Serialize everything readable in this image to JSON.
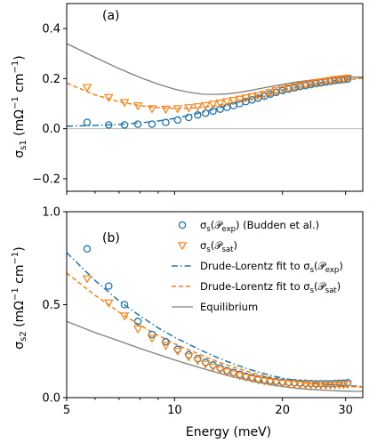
{
  "colors": {
    "exp": "#1f77b4",
    "sat": "#ff7f0e",
    "equilibrium": "#7f7f7f",
    "zero_line": "#b0b0b0"
  },
  "chart_data": [
    {
      "type": "scatter",
      "panel_label": "(a)",
      "ylabel": "σs1 (mΩ⁻¹ cm⁻¹)",
      "xlabel": "",
      "xscale": "log",
      "xlim": [
        5,
        33.5
      ],
      "ylim": [
        -0.25,
        0.5
      ],
      "yticks": [
        -0.2,
        0.0,
        0.2,
        0.4
      ],
      "ytick_labels": [
        "−0.2",
        "0.0",
        "0.2",
        "0.4"
      ],
      "zero_line": true,
      "series": [
        {
          "key": "exp_points",
          "kind": "markers-circle",
          "x": [
            5.7,
            6.55,
            7.25,
            7.9,
            8.65,
            9.45,
            10.2,
            10.95,
            11.6,
            12.2,
            12.8,
            13.4,
            14.0,
            14.6,
            15.2,
            15.8,
            16.45,
            17.1,
            17.8,
            18.5,
            19.2,
            20.0,
            20.8,
            21.6,
            22.4,
            23.2,
            24.0,
            24.8,
            25.6,
            26.4,
            27.2,
            28.0,
            28.8,
            29.6,
            30.4
          ],
          "y": [
            0.025,
            0.015,
            0.015,
            0.018,
            0.018,
            0.025,
            0.035,
            0.045,
            0.055,
            0.062,
            0.07,
            0.078,
            0.085,
            0.092,
            0.1,
            0.108,
            0.115,
            0.122,
            0.13,
            0.138,
            0.145,
            0.152,
            0.158,
            0.163,
            0.168,
            0.172,
            0.176,
            0.18,
            0.183,
            0.186,
            0.189,
            0.192,
            0.194,
            0.196,
            0.198
          ]
        },
        {
          "key": "sat_points",
          "kind": "markers-triangle",
          "x": [
            5.7,
            6.55,
            7.25,
            7.9,
            8.65,
            9.45,
            10.2,
            10.95,
            11.6,
            12.2,
            12.8,
            13.4,
            14.0,
            14.6,
            15.2,
            15.8,
            16.45,
            17.1,
            17.8,
            18.5,
            19.2,
            20.0,
            20.8,
            21.6,
            22.4,
            23.2,
            24.0,
            24.8,
            25.6,
            26.4,
            27.2,
            28.0,
            28.8,
            29.6,
            30.4
          ],
          "y": [
            0.165,
            0.125,
            0.105,
            0.092,
            0.08,
            0.078,
            0.08,
            0.084,
            0.088,
            0.093,
            0.098,
            0.103,
            0.108,
            0.113,
            0.118,
            0.123,
            0.128,
            0.133,
            0.138,
            0.145,
            0.152,
            0.158,
            0.163,
            0.168,
            0.172,
            0.176,
            0.18,
            0.184,
            0.187,
            0.19,
            0.193,
            0.196,
            0.198,
            0.2,
            0.202
          ]
        },
        {
          "key": "exp_fit",
          "kind": "line-dashdot",
          "x": [
            5,
            6,
            7,
            8,
            9,
            10,
            11,
            12,
            13,
            14,
            15,
            16,
            17,
            18,
            19,
            20,
            22,
            24,
            26,
            28,
            30,
            32,
            33.5
          ],
          "y": [
            0.01,
            0.013,
            0.017,
            0.023,
            0.031,
            0.041,
            0.053,
            0.066,
            0.079,
            0.092,
            0.105,
            0.117,
            0.128,
            0.138,
            0.147,
            0.155,
            0.168,
            0.178,
            0.186,
            0.192,
            0.197,
            0.2,
            0.202
          ]
        },
        {
          "key": "sat_fit",
          "kind": "line-dashed",
          "x": [
            5,
            6,
            7,
            8,
            9,
            10,
            11,
            12,
            13,
            14,
            15,
            16,
            17,
            18,
            19,
            20,
            22,
            24,
            26,
            28,
            30,
            32,
            33.5
          ],
          "y": [
            0.182,
            0.135,
            0.108,
            0.092,
            0.084,
            0.081,
            0.082,
            0.086,
            0.092,
            0.099,
            0.107,
            0.115,
            0.123,
            0.13,
            0.137,
            0.144,
            0.157,
            0.168,
            0.178,
            0.186,
            0.193,
            0.199,
            0.202
          ]
        },
        {
          "key": "equilibrium",
          "kind": "line-solid",
          "x": [
            5,
            6,
            7,
            8,
            9,
            10,
            11,
            12,
            13,
            14,
            15,
            16,
            17,
            18,
            19,
            20,
            22,
            24,
            26,
            28,
            30,
            32,
            33.5
          ],
          "y": [
            0.34,
            0.285,
            0.24,
            0.205,
            0.178,
            0.158,
            0.145,
            0.138,
            0.137,
            0.139,
            0.144,
            0.151,
            0.158,
            0.165,
            0.171,
            0.177,
            0.187,
            0.194,
            0.199,
            0.202,
            0.205,
            0.206,
            0.206
          ]
        }
      ]
    },
    {
      "type": "scatter",
      "panel_label": "(b)",
      "ylabel": "σs2 (mΩ⁻¹ cm⁻¹)",
      "xlabel": "Energy (meV)",
      "xscale": "log",
      "xlim": [
        5,
        33.5
      ],
      "ylim": [
        0.0,
        1.0
      ],
      "yticks": [
        0.0,
        0.5,
        1.0
      ],
      "ytick_labels": [
        "0.0",
        "0.5",
        "1.0"
      ],
      "xticks": [
        5,
        10,
        20,
        30
      ],
      "xtick_labels": [
        "5",
        "10",
        "20",
        "30"
      ],
      "legend_position": "top-right",
      "series": [
        {
          "key": "exp_points",
          "kind": "markers-circle",
          "x": [
            5.7,
            6.55,
            7.25,
            7.9,
            8.65,
            9.45,
            10.2,
            10.95,
            11.6,
            12.2,
            12.8,
            13.4,
            14.0,
            14.6,
            15.2,
            15.8,
            16.45,
            17.1,
            17.8,
            18.5,
            19.2,
            20.0,
            20.8,
            21.6,
            22.4,
            23.2,
            24.0,
            24.8,
            25.6,
            26.4,
            27.2,
            28.0,
            28.8,
            29.6,
            30.4
          ],
          "y": [
            0.8,
            0.6,
            0.5,
            0.41,
            0.34,
            0.3,
            0.26,
            0.23,
            0.21,
            0.19,
            0.175,
            0.16,
            0.145,
            0.135,
            0.125,
            0.115,
            0.108,
            0.1,
            0.095,
            0.09,
            0.087,
            0.084,
            0.082,
            0.08,
            0.078,
            0.077,
            0.076,
            0.075,
            0.075,
            0.075,
            0.075,
            0.076,
            0.077,
            0.078,
            0.08
          ]
        },
        {
          "key": "sat_points",
          "kind": "markers-triangle",
          "x": [
            5.7,
            6.55,
            7.25,
            7.9,
            8.65,
            9.45,
            10.2,
            10.95,
            11.6,
            12.2,
            12.8,
            13.4,
            14.0,
            14.6,
            15.2,
            15.8,
            16.45,
            17.1,
            17.8,
            18.5,
            19.2,
            20.0,
            20.8,
            21.6,
            22.4,
            23.2,
            24.0,
            24.8,
            25.6,
            26.4,
            27.2,
            28.0,
            28.8,
            29.6,
            30.4
          ],
          "y": [
            0.64,
            0.51,
            0.44,
            0.37,
            0.32,
            0.28,
            0.25,
            0.22,
            0.2,
            0.18,
            0.165,
            0.15,
            0.138,
            0.128,
            0.118,
            0.11,
            0.102,
            0.095,
            0.09,
            0.085,
            0.081,
            0.078,
            0.075,
            0.073,
            0.071,
            0.07,
            0.069,
            0.068,
            0.068,
            0.068,
            0.068,
            0.069,
            0.07,
            0.071,
            0.072
          ]
        },
        {
          "key": "exp_fit",
          "kind": "line-dashdot",
          "x": [
            5,
            6,
            7,
            8,
            9,
            10,
            11,
            12,
            13,
            14,
            15,
            16,
            17,
            18,
            19,
            20,
            22,
            24,
            26,
            28,
            30,
            32,
            33.5
          ],
          "y": [
            0.78,
            0.63,
            0.52,
            0.44,
            0.375,
            0.325,
            0.285,
            0.25,
            0.22,
            0.195,
            0.173,
            0.155,
            0.14,
            0.126,
            0.115,
            0.105,
            0.09,
            0.08,
            0.073,
            0.068,
            0.064,
            0.062,
            0.061
          ]
        },
        {
          "key": "sat_fit",
          "kind": "line-dashed",
          "x": [
            5,
            6,
            7,
            8,
            9,
            10,
            11,
            12,
            13,
            14,
            15,
            16,
            17,
            18,
            19,
            20,
            22,
            24,
            26,
            28,
            30,
            32,
            33.5
          ],
          "y": [
            0.67,
            0.55,
            0.46,
            0.39,
            0.335,
            0.29,
            0.255,
            0.225,
            0.198,
            0.176,
            0.157,
            0.141,
            0.127,
            0.115,
            0.105,
            0.096,
            0.083,
            0.074,
            0.068,
            0.063,
            0.06,
            0.058,
            0.057
          ]
        },
        {
          "key": "equilibrium",
          "kind": "line-solid",
          "x": [
            5,
            6,
            7,
            8,
            9,
            10,
            11,
            12,
            13,
            14,
            15,
            16,
            17,
            18,
            19,
            20,
            22,
            24,
            26,
            28,
            30,
            32,
            33.5
          ],
          "y": [
            0.41,
            0.35,
            0.305,
            0.265,
            0.232,
            0.203,
            0.178,
            0.156,
            0.137,
            0.12,
            0.106,
            0.094,
            0.083,
            0.074,
            0.066,
            0.06,
            0.05,
            0.044,
            0.04,
            0.037,
            0.035,
            0.034,
            0.034
          ]
        }
      ],
      "legend": [
        {
          "series": "exp_points",
          "label": "σs(Pexp) (Budden et al.)"
        },
        {
          "series": "sat_points",
          "label": "σs(Psat)"
        },
        {
          "series": "exp_fit",
          "label": "Drude-Lorentz fit to σs(Pexp)"
        },
        {
          "series": "sat_fit",
          "label": "Drude-Lorentz fit to σs(Psat)"
        },
        {
          "series": "equilibrium",
          "label": "Equilibrium"
        }
      ]
    }
  ]
}
